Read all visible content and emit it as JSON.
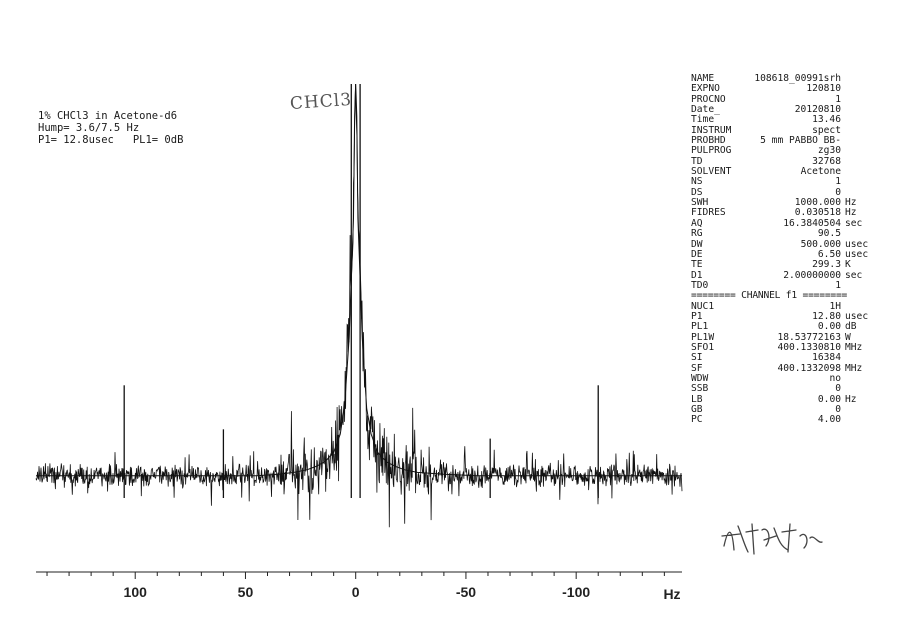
{
  "sample_header": {
    "line1": "1% CHCl3 in Acetone-d6",
    "line2": "Hump= 3.6/7.5 Hz",
    "line3": "P1= 12.8usec   PL1= 0dB"
  },
  "handwritten_note": "CHCl3",
  "acquisition_params": [
    {
      "label": "NAME",
      "value": "108618_00991srh",
      "unit": ""
    },
    {
      "label": "EXPNO",
      "value": "120810",
      "unit": ""
    },
    {
      "label": "PROCNO",
      "value": "1",
      "unit": ""
    },
    {
      "label": "Date_",
      "value": "20120810",
      "unit": ""
    },
    {
      "label": "Time",
      "value": "13.46",
      "unit": ""
    },
    {
      "label": "INSTRUM",
      "value": "spect",
      "unit": ""
    },
    {
      "label": "PROBHD",
      "value": "5 mm PABBO BB-",
      "unit": ""
    },
    {
      "label": "PULPROG",
      "value": "zg30",
      "unit": ""
    },
    {
      "label": "TD",
      "value": "32768",
      "unit": ""
    },
    {
      "label": "SOLVENT",
      "value": "Acetone",
      "unit": ""
    },
    {
      "label": "NS",
      "value": "1",
      "unit": ""
    },
    {
      "label": "DS",
      "value": "0",
      "unit": ""
    },
    {
      "label": "SWH",
      "value": "1000.000",
      "unit": "Hz"
    },
    {
      "label": "FIDRES",
      "value": "0.030518",
      "unit": "Hz"
    },
    {
      "label": "AQ",
      "value": "16.3840504",
      "unit": "sec"
    },
    {
      "label": "RG",
      "value": "90.5",
      "unit": ""
    },
    {
      "label": "DW",
      "value": "500.000",
      "unit": "usec"
    },
    {
      "label": "DE",
      "value": "6.50",
      "unit": "usec"
    },
    {
      "label": "TE",
      "value": "299.3",
      "unit": "K"
    },
    {
      "label": "D1",
      "value": "2.00000000",
      "unit": "sec"
    },
    {
      "label": "TD0",
      "value": "1",
      "unit": ""
    }
  ],
  "channel_header": "======== CHANNEL f1 ========",
  "channel_params": [
    {
      "label": "NUC1",
      "value": "1H",
      "unit": ""
    },
    {
      "label": "P1",
      "value": "12.80",
      "unit": "usec"
    },
    {
      "label": "PL1",
      "value": "0.00",
      "unit": "dB"
    },
    {
      "label": "PL1W",
      "value": "18.53772163",
      "unit": "W"
    },
    {
      "label": "SFO1",
      "value": "400.1330810",
      "unit": "MHz"
    },
    {
      "label": "SI",
      "value": "16384",
      "unit": ""
    },
    {
      "label": "SF",
      "value": "400.1332098",
      "unit": "MHz"
    },
    {
      "label": "WDW",
      "value": "no",
      "unit": ""
    },
    {
      "label": "SSB",
      "value": "0",
      "unit": ""
    },
    {
      "label": "LB",
      "value": "0.00",
      "unit": "Hz"
    },
    {
      "label": "GB",
      "value": "0",
      "unit": ""
    },
    {
      "label": "PC",
      "value": "4.00",
      "unit": ""
    }
  ],
  "chart_data": {
    "type": "line",
    "xlabel": "Hz",
    "xlim": [
      145,
      -148
    ],
    "x_reversed": true,
    "xticks": [
      100,
      50,
      0,
      -50,
      -100
    ],
    "xtick_labels": [
      "100",
      "50",
      "0",
      "-50",
      "-100"
    ],
    "ylim": [
      -0.5,
      8.5
    ],
    "grid": false,
    "line_color": "#111111",
    "series": [
      {
        "x": [
          145,
          120,
          106,
          104,
          90,
          75,
          60,
          45,
          35,
          28,
          22,
          18,
          14,
          10,
          7,
          5,
          3,
          1,
          0.5,
          0,
          -0.5,
          -1,
          -3,
          -5,
          -7,
          -10,
          -14,
          -18,
          -22,
          -28,
          -40,
          -55,
          -62,
          -75,
          -90,
          -100,
          -109,
          -111,
          -125,
          -148
        ],
        "y": [
          0.05,
          0.05,
          0.05,
          0.05,
          0.05,
          0.05,
          0.05,
          0.05,
          0.08,
          0.12,
          0.18,
          0.25,
          0.35,
          0.55,
          0.95,
          1.6,
          3.0,
          5.6,
          7.8,
          8.5,
          7.8,
          5.6,
          3.0,
          1.5,
          0.95,
          0.55,
          0.35,
          0.25,
          0.18,
          0.12,
          0.08,
          0.05,
          0.05,
          0.05,
          0.05,
          0.05,
          0.05,
          0.05,
          0.05,
          0.05
        ]
      }
    ],
    "sharp_peaks": [
      {
        "x": 105,
        "y": 2.0
      },
      {
        "x": 60,
        "y": 1.05
      },
      {
        "x": -2,
        "y": 8.5
      },
      {
        "x": 2,
        "y": 8.5
      },
      {
        "x": -61,
        "y": 0.85
      },
      {
        "x": -110,
        "y": 2.0
      }
    ]
  }
}
